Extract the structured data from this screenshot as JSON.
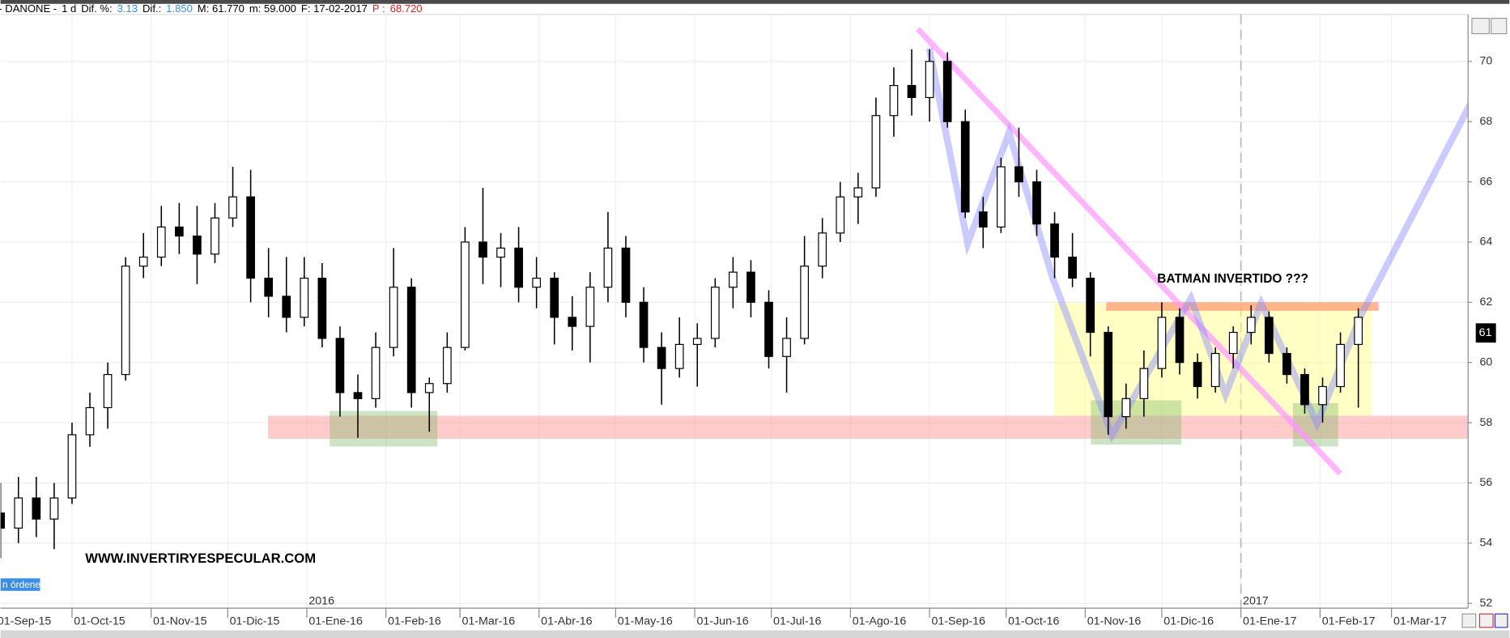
{
  "chart_data": {
    "type": "candlestick",
    "header": [
      {
        "text": "- DANONE -",
        "color": "#000000"
      },
      {
        "text": "1 d",
        "color": "#000000"
      },
      {
        "text": "Dif. %:",
        "color": "#000000"
      },
      {
        "text": "3.13",
        "color": "#3a8ee6"
      },
      {
        "text": "Dif.:",
        "color": "#000000"
      },
      {
        "text": "1.850",
        "color": "#3a8ee6"
      },
      {
        "text": "M: 61.770",
        "color": "#000000"
      },
      {
        "text": "m: 59.000",
        "color": "#000000"
      },
      {
        "text": "F: 17-02-2017",
        "color": "#000000"
      },
      {
        "text": "P :",
        "color": "#e02020"
      },
      {
        "text": "68.720",
        "color": "#e02020"
      }
    ],
    "annotations": {
      "pattern": "BATMAN INVERTIDO ???",
      "website": "WWW.INVERTIRYESPECULAR.COM",
      "orders": "n órdenes",
      "last_price": "61"
    },
    "year_markers": [
      {
        "value": "2016-01-01",
        "label": "2016"
      },
      {
        "value": "2017-01-01",
        "label": "2017"
      }
    ],
    "up_color": "#ffffff",
    "down_color": "#000000",
    "wick_color": "#000000",
    "grid": true,
    "xlim": [
      "2015-09-03",
      "2017-03-31"
    ],
    "xticks": [
      {
        "value": "2015-09-01",
        "label": "01-Sep-15"
      },
      {
        "value": "2015-10-01",
        "label": "01-Oct-15"
      },
      {
        "value": "2015-11-01",
        "label": "01-Nov-15"
      },
      {
        "value": "2015-12-01",
        "label": "01-Dic-15"
      },
      {
        "value": "2016-01-01",
        "label": "01-Ene-16"
      },
      {
        "value": "2016-02-01",
        "label": "01-Feb-16"
      },
      {
        "value": "2016-03-01",
        "label": "01-Mar-16"
      },
      {
        "value": "2016-04-01",
        "label": "01-Abr-16"
      },
      {
        "value": "2016-05-01",
        "label": "01-May-16"
      },
      {
        "value": "2016-06-01",
        "label": "01-Jun-16"
      },
      {
        "value": "2016-07-01",
        "label": "01-Jul-16"
      },
      {
        "value": "2016-08-01",
        "label": "01-Ago-16"
      },
      {
        "value": "2016-09-01",
        "label": "01-Sep-16"
      },
      {
        "value": "2016-10-01",
        "label": "01-Oct-16"
      },
      {
        "value": "2016-11-01",
        "label": "01-Nov-16"
      },
      {
        "value": "2016-12-01",
        "label": "01-Dic-16"
      },
      {
        "value": "2017-01-01",
        "label": "01-Ene-17"
      },
      {
        "value": "2017-02-01",
        "label": "01-Feb-17"
      },
      {
        "value": "2017-03-01",
        "label": "01-Mar-17"
      }
    ],
    "ylim": [
      51.84,
      71.56
    ],
    "yticks": [
      52,
      54,
      56,
      58,
      60,
      62,
      64,
      66,
      68,
      70
    ],
    "x": [
      "2015-09-03",
      "2015-09-10",
      "2015-09-17",
      "2015-09-24",
      "2015-10-01",
      "2015-10-08",
      "2015-10-15",
      "2015-10-22",
      "2015-10-29",
      "2015-11-05",
      "2015-11-12",
      "2015-11-19",
      "2015-11-26",
      "2015-12-03",
      "2015-12-10",
      "2015-12-17",
      "2015-12-24",
      "2015-12-31",
      "2016-01-07",
      "2016-01-14",
      "2016-01-21",
      "2016-01-28",
      "2016-02-04",
      "2016-02-11",
      "2016-02-18",
      "2016-02-25",
      "2016-03-03",
      "2016-03-10",
      "2016-03-17",
      "2016-03-24",
      "2016-03-31",
      "2016-04-07",
      "2016-04-14",
      "2016-04-21",
      "2016-04-28",
      "2016-05-05",
      "2016-05-12",
      "2016-05-19",
      "2016-05-26",
      "2016-06-02",
      "2016-06-09",
      "2016-06-16",
      "2016-06-23",
      "2016-06-30",
      "2016-07-07",
      "2016-07-14",
      "2016-07-21",
      "2016-07-28",
      "2016-08-04",
      "2016-08-11",
      "2016-08-18",
      "2016-08-25",
      "2016-09-01",
      "2016-09-08",
      "2016-09-15",
      "2016-09-22",
      "2016-09-29",
      "2016-10-06",
      "2016-10-13",
      "2016-10-20",
      "2016-10-27",
      "2016-11-03",
      "2016-11-10",
      "2016-11-17",
      "2016-11-24",
      "2016-12-01",
      "2016-12-08",
      "2016-12-15",
      "2016-12-22",
      "2016-12-29",
      "2017-01-05",
      "2017-01-12",
      "2017-01-19",
      "2017-01-26",
      "2017-02-02",
      "2017-02-09",
      "2017-02-16"
    ],
    "open": [
      55,
      54.5,
      55.5,
      54.8,
      55.5,
      57.6,
      58.5,
      59.6,
      63.2,
      63.5,
      64.5,
      64.2,
      63.6,
      64.8,
      65.5,
      62.8,
      62.2,
      61.5,
      62.8,
      60.8,
      59,
      58.8,
      60.5,
      62.5,
      59,
      59.3,
      60.5,
      64,
      63.5,
      63.8,
      62.5,
      62.8,
      61.5,
      61.2,
      62.5,
      63.8,
      62,
      60.5,
      59.8,
      60.6,
      60.8,
      62.5,
      63,
      62,
      60.2,
      60.8,
      63.2,
      64.3,
      65.5,
      65.8,
      68.2,
      69.2,
      68.8,
      70,
      68,
      65,
      64.5,
      66.5,
      66,
      64.6,
      63.5,
      62.8,
      61,
      58.2,
      58.8,
      59.8,
      61.5,
      60,
      59.2,
      60.3,
      61,
      61.5,
      60.3,
      59.6,
      58.6,
      59.2,
      60.6
    ],
    "high": [
      56,
      56.2,
      56.2,
      56,
      58,
      59,
      60,
      63.5,
      64.3,
      65.2,
      65.3,
      65.2,
      65.3,
      66.5,
      66.4,
      63.8,
      63.5,
      63.5,
      63.3,
      61.2,
      59.6,
      61,
      63.8,
      62.8,
      59.5,
      61,
      64.5,
      65.8,
      64.3,
      64.5,
      63.5,
      63,
      62.2,
      63,
      65,
      64.2,
      62.5,
      61,
      61.5,
      61.3,
      62.8,
      63.5,
      63.4,
      62.4,
      61.5,
      64.2,
      64.8,
      66,
      66.3,
      68.8,
      69.8,
      70.4,
      70.4,
      70.3,
      68.4,
      65.5,
      66.8,
      67.8,
      66.4,
      65,
      64.3,
      63,
      61.2,
      59.3,
      60.4,
      62,
      61.8,
      60.3,
      60.5,
      61.2,
      61.9,
      61.7,
      60.5,
      59.8,
      59.5,
      61,
      61.8
    ],
    "low": [
      53.5,
      54,
      54.2,
      53.8,
      55.3,
      57.2,
      57.8,
      59.4,
      62.8,
      63.2,
      63.6,
      62.6,
      63.3,
      64.5,
      62,
      61.5,
      61,
      61.2,
      60.5,
      58.2,
      57.5,
      58.5,
      60.2,
      58.5,
      57.7,
      59,
      60.4,
      62.6,
      62.5,
      62,
      61.8,
      60.6,
      60.4,
      60,
      62,
      61.5,
      60,
      58.6,
      59.5,
      59.2,
      60.5,
      61.8,
      61.5,
      59.8,
      59,
      60.6,
      62.8,
      64,
      64.6,
      65.5,
      67.5,
      68.2,
      68,
      67.8,
      64.8,
      63.8,
      64.3,
      65.5,
      64.2,
      62.8,
      62.5,
      60.2,
      57.6,
      57.8,
      58.2,
      59.5,
      59.6,
      58.8,
      59,
      59.8,
      60.6,
      60,
      59.3,
      58.3,
      58,
      59,
      58.5
    ],
    "close": [
      54.5,
      55.5,
      54.8,
      55.5,
      57.6,
      58.5,
      59.6,
      63.2,
      63.5,
      64.5,
      64.2,
      63.6,
      64.8,
      65.5,
      62.8,
      62.2,
      61.5,
      62.8,
      60.8,
      59,
      58.8,
      60.5,
      62.5,
      59,
      59.3,
      60.5,
      64,
      63.5,
      63.8,
      62.5,
      62.8,
      61.5,
      61.2,
      62.5,
      63.8,
      62,
      60.5,
      59.8,
      60.6,
      60.8,
      62.5,
      63,
      62,
      60.2,
      60.8,
      63.2,
      64.3,
      65.5,
      65.8,
      68.2,
      69.2,
      68.8,
      70,
      68,
      65,
      64.5,
      66.5,
      66,
      64.6,
      63.5,
      62.8,
      61,
      58.2,
      58.8,
      59.8,
      61.5,
      60,
      59.2,
      60.3,
      61,
      61.5,
      60.3,
      59.6,
      58.6,
      59.2,
      60.6,
      61.5
    ]
  }
}
